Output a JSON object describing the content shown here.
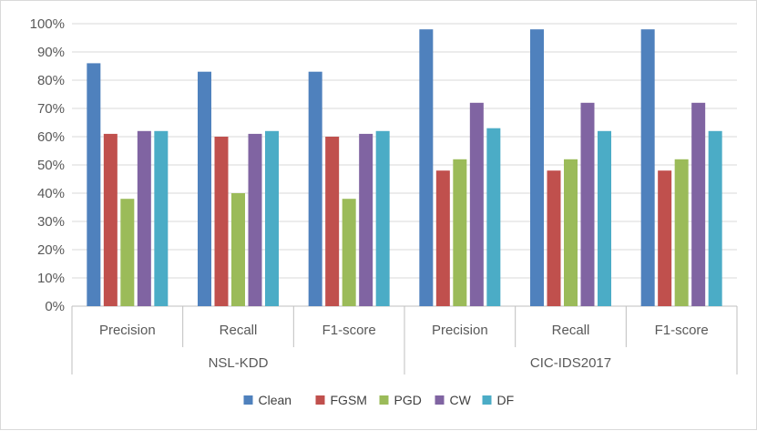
{
  "chart_data": {
    "type": "bar",
    "title": "",
    "xlabel": "",
    "ylabel": "",
    "ylim": [
      0,
      100
    ],
    "y_ticks": [
      "0%",
      "10%",
      "20%",
      "30%",
      "40%",
      "50%",
      "60%",
      "70%",
      "80%",
      "90%",
      "100%"
    ],
    "groups": [
      {
        "name": "NSL-KDD",
        "categories": [
          "Precision",
          "Recall",
          "F1-score"
        ]
      },
      {
        "name": "CIC-IDS2017",
        "categories": [
          "Precision",
          "Recall",
          "F1-score"
        ]
      }
    ],
    "categories": [
      "Precision",
      "Recall",
      "F1-score",
      "Precision",
      "Recall",
      "F1-score"
    ],
    "series": [
      {
        "name": "Clean",
        "color": "#4f81bd",
        "values": [
          86,
          83,
          83,
          98,
          98,
          98
        ]
      },
      {
        "name": "FGSM",
        "color": "#c0504d",
        "values": [
          61,
          60,
          60,
          48,
          48,
          48
        ]
      },
      {
        "name": "PGD",
        "color": "#9bbb59",
        "values": [
          38,
          40,
          38,
          52,
          52,
          52
        ]
      },
      {
        "name": "CW",
        "color": "#8064a2",
        "values": [
          62,
          61,
          61,
          72,
          72,
          72
        ]
      },
      {
        "name": "DF",
        "color": "#4bacc6",
        "values": [
          62,
          62,
          62,
          63,
          62,
          62
        ]
      }
    ],
    "grid": true,
    "legend_position": "bottom"
  }
}
